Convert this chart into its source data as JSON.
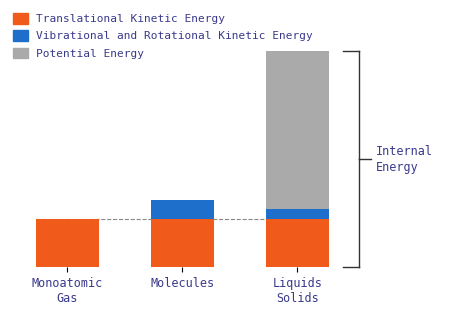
{
  "categories": [
    "Monoatomic\nGas",
    "Molecules",
    "Liquids\nSolids"
  ],
  "translational": [
    1.0,
    1.0,
    1.0
  ],
  "vibrational": [
    0.0,
    0.4,
    0.22
  ],
  "potential": [
    0.0,
    0.0,
    3.3
  ],
  "colors": {
    "translational": "#F05A1A",
    "vibrational": "#1E6FCC",
    "potential": "#AAAAAA"
  },
  "legend_labels": [
    "Translational Kinetic Energy",
    "Vibrational and Rotational Kinetic Energy",
    "Potential Energy"
  ],
  "annotation_text": "Internal\nEnergy",
  "dashed_line_y": 1.0,
  "bar_width": 0.55,
  "ylim": [
    0,
    5.5
  ],
  "xlim": [
    -0.55,
    3.5
  ],
  "bg_color": "#FFFFFF",
  "text_color": "#3A3A8C",
  "legend_fontsize": 8.0,
  "tick_fontsize": 8.5
}
